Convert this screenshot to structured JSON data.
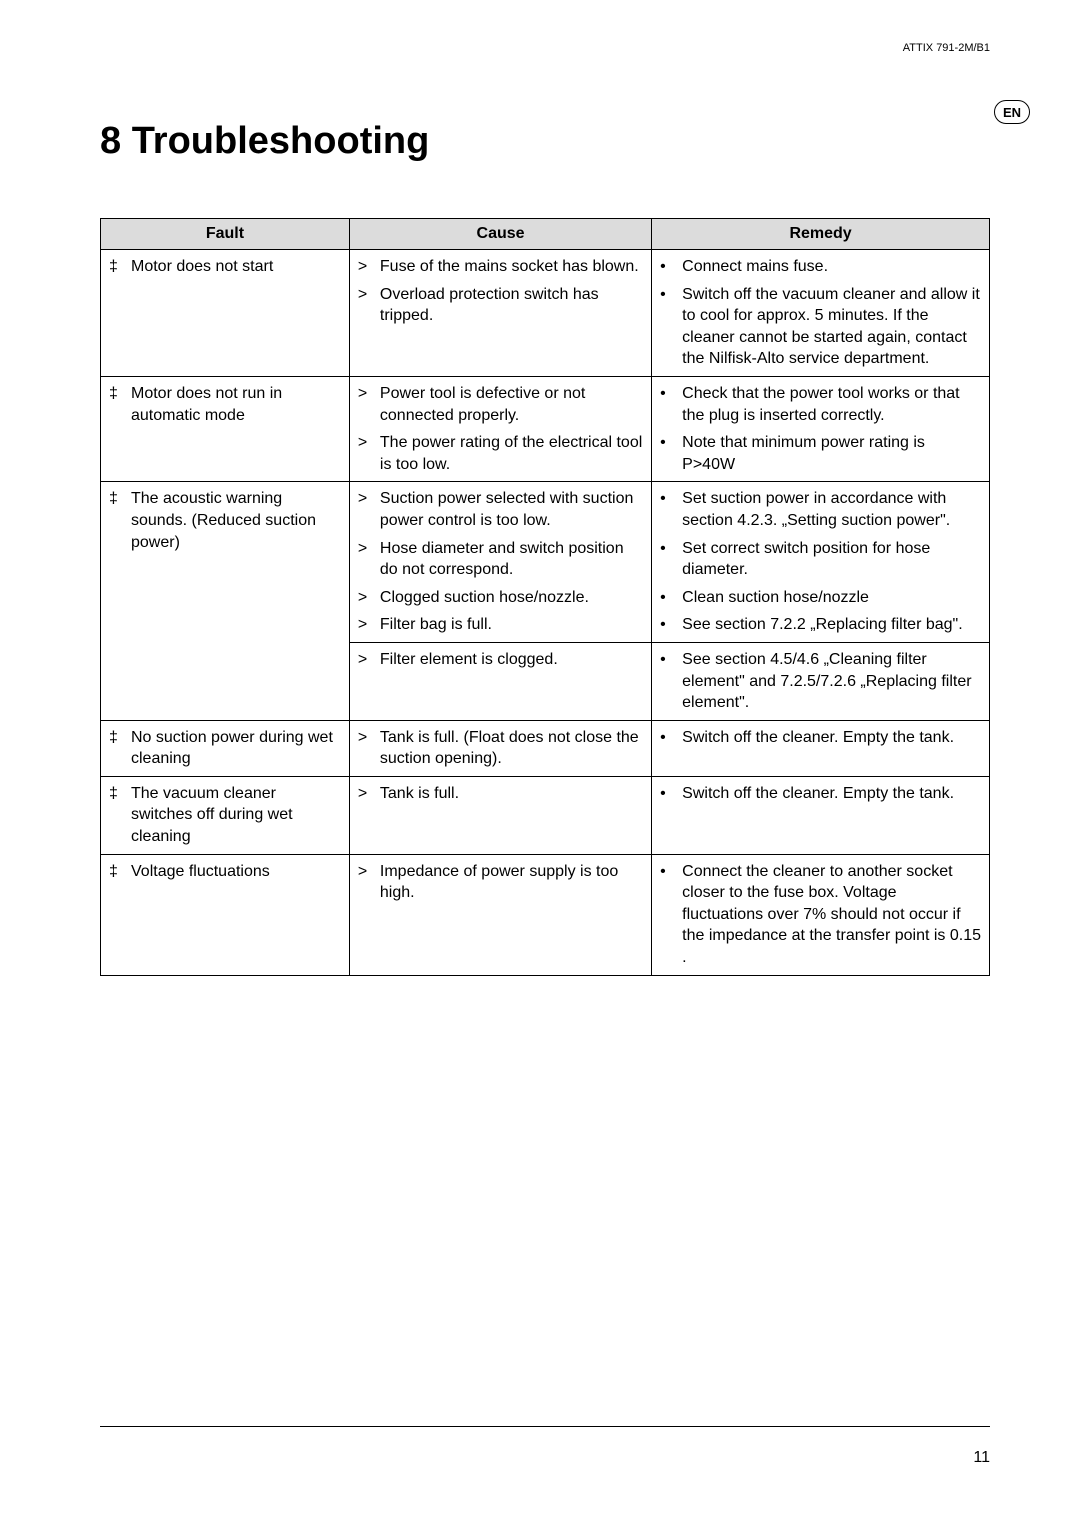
{
  "header": {
    "model": "ATTIX 791-2M/B1",
    "lang": "EN"
  },
  "title": "8  Troubleshooting",
  "table": {
    "headers": {
      "fault": "Fault",
      "cause": "Cause",
      "remedy": "Remedy"
    },
    "rows": [
      {
        "fault_marker": "‡",
        "fault": "Motor does not start",
        "pairs": [
          {
            "cause_marker": ">",
            "cause": "Fuse of the mains socket has blown.",
            "remedy_marker": "•",
            "remedy": "Connect mains fuse."
          },
          {
            "cause_marker": ">",
            "cause": "Overload protection switch has tripped.",
            "remedy_marker": "•",
            "remedy": "Switch off the vacuum cleaner and allow it to cool for approx. 5 minutes. If the cleaner cannot be started again, contact the Nilfisk-Alto service department."
          }
        ]
      },
      {
        "fault_marker": "‡",
        "fault": "Motor does not run in automatic mode",
        "pairs": [
          {
            "cause_marker": ">",
            "cause": "Power tool is defective or not connected properly.",
            "remedy_marker": "•",
            "remedy": "Check that the power tool works or that the plug is inserted correctly."
          },
          {
            "cause_marker": ">",
            "cause": "The power rating of the electrical tool is too low.",
            "remedy_marker": "•",
            "remedy": "Note that minimum power rating is P>40W"
          }
        ]
      },
      {
        "fault_marker": "‡",
        "fault": "The acoustic warning sounds. (Reduced suction power)",
        "split": [
          {
            "pairs": [
              {
                "cause_marker": ">",
                "cause": "Suction power selected with suction power control is too low.",
                "remedy_marker": "•",
                "remedy": "Set suction power in accordance with section 4.2.3. „Setting suction power\"."
              },
              {
                "cause_marker": ">",
                "cause": "Hose diameter and switch position do not correspond.",
                "remedy_marker": "•",
                "remedy": "Set correct switch position for hose diameter."
              },
              {
                "cause_marker": ">",
                "cause": "Clogged suction hose/nozzle.",
                "remedy_marker": "•",
                "remedy": "Clean suction hose/nozzle"
              },
              {
                "cause_marker": ">",
                "cause": "Filter bag is full.",
                "remedy_marker": "•",
                "remedy": "See section 7.2.2 „Replacing filter bag\"."
              }
            ]
          },
          {
            "pairs": [
              {
                "cause_marker": ">",
                "cause": "Filter element is clogged.",
                "remedy_marker": "•",
                "remedy": "See section 4.5/4.6 „Cleaning filter element\" and 7.2.5/7.2.6 „Replacing filter element\"."
              }
            ]
          }
        ]
      },
      {
        "fault_marker": "‡",
        "fault": "No suction power during wet cleaning",
        "pairs": [
          {
            "cause_marker": ">",
            "cause": "Tank is full. (Float does not close the suction opening).",
            "remedy_marker": "•",
            "remedy": "Switch off the cleaner. Empty the tank."
          }
        ]
      },
      {
        "fault_marker": "‡",
        "fault": "The vacuum cleaner switches off during wet cleaning",
        "pairs": [
          {
            "cause_marker": ">",
            "cause": "Tank is full.",
            "remedy_marker": "•",
            "remedy": "Switch off the cleaner. Empty the tank."
          }
        ]
      },
      {
        "fault_marker": "‡",
        "fault": "Voltage fluctuations",
        "pairs": [
          {
            "cause_marker": ">",
            "cause": "Impedance of power supply is too high.",
            "remedy_marker": "•",
            "remedy": "Connect the cleaner to another socket closer to the fuse box. Voltage fluctuations over 7% should not occur if the impedance at the transfer point is   0.15   ."
          }
        ]
      }
    ]
  },
  "page_number": "11"
}
